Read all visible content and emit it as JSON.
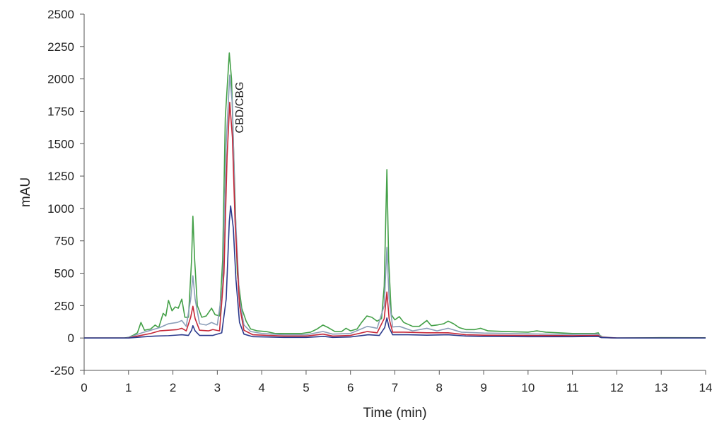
{
  "chart_data": {
    "type": "line",
    "title": "",
    "xlabel": "Time (min)",
    "ylabel": "mAU",
    "xlim": [
      0,
      14
    ],
    "ylim": [
      -250,
      2500
    ],
    "xticks": [
      0,
      1,
      2,
      3,
      4,
      5,
      6,
      7,
      8,
      9,
      10,
      11,
      12,
      13,
      14
    ],
    "yticks": [
      -250,
      0,
      250,
      500,
      750,
      1000,
      1250,
      1500,
      1750,
      2000,
      2250,
      2500
    ],
    "grid": false,
    "legend": "none",
    "annotations": [
      {
        "text": "CBD/CBG",
        "x": 3.5,
        "y": 1780,
        "rotation": -90
      }
    ],
    "series": [
      {
        "color": "#43a047",
        "points": [
          [
            0,
            0
          ],
          [
            0.9,
            0
          ],
          [
            1.0,
            5
          ],
          [
            1.1,
            20
          ],
          [
            1.2,
            40
          ],
          [
            1.28,
            120
          ],
          [
            1.36,
            60
          ],
          [
            1.5,
            70
          ],
          [
            1.6,
            100
          ],
          [
            1.68,
            80
          ],
          [
            1.78,
            190
          ],
          [
            1.84,
            170
          ],
          [
            1.9,
            290
          ],
          [
            1.98,
            210
          ],
          [
            2.05,
            240
          ],
          [
            2.12,
            230
          ],
          [
            2.2,
            300
          ],
          [
            2.27,
            160
          ],
          [
            2.35,
            160
          ],
          [
            2.42,
            600
          ],
          [
            2.45,
            940
          ],
          [
            2.49,
            600
          ],
          [
            2.55,
            250
          ],
          [
            2.65,
            160
          ],
          [
            2.75,
            170
          ],
          [
            2.87,
            230
          ],
          [
            2.95,
            180
          ],
          [
            3.05,
            170
          ],
          [
            3.12,
            600
          ],
          [
            3.18,
            1700
          ],
          [
            3.27,
            2200
          ],
          [
            3.32,
            2000
          ],
          [
            3.38,
            1300
          ],
          [
            3.45,
            500
          ],
          [
            3.55,
            230
          ],
          [
            3.65,
            130
          ],
          [
            3.75,
            70
          ],
          [
            3.9,
            55
          ],
          [
            4.1,
            50
          ],
          [
            4.3,
            35
          ],
          [
            4.6,
            35
          ],
          [
            4.9,
            35
          ],
          [
            5.1,
            45
          ],
          [
            5.25,
            70
          ],
          [
            5.38,
            100
          ],
          [
            5.5,
            80
          ],
          [
            5.65,
            50
          ],
          [
            5.8,
            50
          ],
          [
            5.9,
            75
          ],
          [
            6.0,
            55
          ],
          [
            6.15,
            70
          ],
          [
            6.25,
            120
          ],
          [
            6.37,
            170
          ],
          [
            6.48,
            160
          ],
          [
            6.6,
            130
          ],
          [
            6.7,
            150
          ],
          [
            6.76,
            400
          ],
          [
            6.82,
            1300
          ],
          [
            6.86,
            600
          ],
          [
            6.92,
            180
          ],
          [
            7.0,
            140
          ],
          [
            7.1,
            165
          ],
          [
            7.2,
            120
          ],
          [
            7.4,
            90
          ],
          [
            7.55,
            90
          ],
          [
            7.72,
            135
          ],
          [
            7.82,
            95
          ],
          [
            7.95,
            100
          ],
          [
            8.1,
            110
          ],
          [
            8.2,
            130
          ],
          [
            8.32,
            110
          ],
          [
            8.45,
            80
          ],
          [
            8.6,
            65
          ],
          [
            8.8,
            65
          ],
          [
            8.93,
            75
          ],
          [
            9.1,
            55
          ],
          [
            9.5,
            50
          ],
          [
            10.0,
            45
          ],
          [
            10.2,
            55
          ],
          [
            10.4,
            45
          ],
          [
            11.0,
            35
          ],
          [
            11.5,
            35
          ],
          [
            11.58,
            40
          ],
          [
            11.62,
            20
          ],
          [
            11.7,
            5
          ],
          [
            12.0,
            0
          ],
          [
            12.8,
            2
          ],
          [
            13.0,
            3
          ],
          [
            14.0,
            2
          ]
        ]
      },
      {
        "color": "#8a9db8",
        "points": [
          [
            0,
            0
          ],
          [
            0.95,
            0
          ],
          [
            1.1,
            15
          ],
          [
            1.3,
            40
          ],
          [
            1.5,
            60
          ],
          [
            1.7,
            80
          ],
          [
            1.9,
            110
          ],
          [
            2.1,
            120
          ],
          [
            2.2,
            135
          ],
          [
            2.3,
            90
          ],
          [
            2.4,
            300
          ],
          [
            2.45,
            480
          ],
          [
            2.5,
            300
          ],
          [
            2.6,
            110
          ],
          [
            2.75,
            100
          ],
          [
            2.87,
            120
          ],
          [
            3.0,
            100
          ],
          [
            3.12,
            400
          ],
          [
            3.2,
            1500
          ],
          [
            3.28,
            2030
          ],
          [
            3.34,
            1800
          ],
          [
            3.4,
            1000
          ],
          [
            3.5,
            300
          ],
          [
            3.6,
            100
          ],
          [
            3.75,
            50
          ],
          [
            4.0,
            35
          ],
          [
            4.5,
            25
          ],
          [
            5.0,
            25
          ],
          [
            5.38,
            50
          ],
          [
            5.6,
            30
          ],
          [
            6.0,
            35
          ],
          [
            6.38,
            90
          ],
          [
            6.6,
            75
          ],
          [
            6.76,
            250
          ],
          [
            6.82,
            700
          ],
          [
            6.87,
            300
          ],
          [
            6.95,
            85
          ],
          [
            7.1,
            90
          ],
          [
            7.4,
            55
          ],
          [
            7.72,
            75
          ],
          [
            7.95,
            55
          ],
          [
            8.2,
            75
          ],
          [
            8.5,
            45
          ],
          [
            9.0,
            38
          ],
          [
            10.0,
            32
          ],
          [
            11.0,
            28
          ],
          [
            11.58,
            30
          ],
          [
            11.65,
            10
          ],
          [
            12.0,
            0
          ],
          [
            14.0,
            0
          ]
        ]
      },
      {
        "color": "#c62838",
        "points": [
          [
            0,
            0
          ],
          [
            1.0,
            0
          ],
          [
            1.2,
            15
          ],
          [
            1.5,
            35
          ],
          [
            1.7,
            55
          ],
          [
            1.9,
            60
          ],
          [
            2.1,
            65
          ],
          [
            2.2,
            75
          ],
          [
            2.3,
            55
          ],
          [
            2.4,
            160
          ],
          [
            2.45,
            245
          ],
          [
            2.5,
            150
          ],
          [
            2.6,
            60
          ],
          [
            2.8,
            55
          ],
          [
            2.9,
            65
          ],
          [
            3.05,
            55
          ],
          [
            3.15,
            500
          ],
          [
            3.22,
            1400
          ],
          [
            3.28,
            1820
          ],
          [
            3.34,
            1550
          ],
          [
            3.4,
            900
          ],
          [
            3.5,
            250
          ],
          [
            3.6,
            60
          ],
          [
            3.8,
            25
          ],
          [
            4.5,
            15
          ],
          [
            5.0,
            15
          ],
          [
            5.38,
            30
          ],
          [
            5.6,
            15
          ],
          [
            6.0,
            20
          ],
          [
            6.38,
            50
          ],
          [
            6.6,
            40
          ],
          [
            6.76,
            150
          ],
          [
            6.82,
            355
          ],
          [
            6.87,
            150
          ],
          [
            6.95,
            45
          ],
          [
            7.2,
            45
          ],
          [
            7.72,
            40
          ],
          [
            8.2,
            40
          ],
          [
            8.6,
            25
          ],
          [
            9.0,
            22
          ],
          [
            10.0,
            20
          ],
          [
            11.0,
            18
          ],
          [
            11.58,
            20
          ],
          [
            11.65,
            5
          ],
          [
            12.0,
            0
          ],
          [
            14.0,
            0
          ]
        ]
      },
      {
        "color": "#2b3a8c",
        "points": [
          [
            0,
            0
          ],
          [
            1.0,
            0
          ],
          [
            1.3,
            8
          ],
          [
            1.6,
            15
          ],
          [
            1.9,
            18
          ],
          [
            2.2,
            25
          ],
          [
            2.35,
            20
          ],
          [
            2.42,
            60
          ],
          [
            2.45,
            95
          ],
          [
            2.5,
            55
          ],
          [
            2.6,
            20
          ],
          [
            2.9,
            20
          ],
          [
            3.1,
            40
          ],
          [
            3.2,
            300
          ],
          [
            3.27,
            900
          ],
          [
            3.3,
            1020
          ],
          [
            3.36,
            850
          ],
          [
            3.42,
            450
          ],
          [
            3.5,
            120
          ],
          [
            3.6,
            30
          ],
          [
            3.8,
            10
          ],
          [
            4.5,
            5
          ],
          [
            5.0,
            5
          ],
          [
            5.4,
            12
          ],
          [
            5.6,
            5
          ],
          [
            6.0,
            8
          ],
          [
            6.4,
            25
          ],
          [
            6.65,
            20
          ],
          [
            6.77,
            80
          ],
          [
            6.82,
            155
          ],
          [
            6.87,
            80
          ],
          [
            6.95,
            25
          ],
          [
            7.3,
            25
          ],
          [
            7.72,
            22
          ],
          [
            8.2,
            25
          ],
          [
            8.6,
            15
          ],
          [
            9.0,
            12
          ],
          [
            10.0,
            10
          ],
          [
            11.0,
            10
          ],
          [
            11.58,
            12
          ],
          [
            11.65,
            3
          ],
          [
            12.0,
            0
          ],
          [
            14.0,
            0
          ]
        ]
      }
    ]
  }
}
